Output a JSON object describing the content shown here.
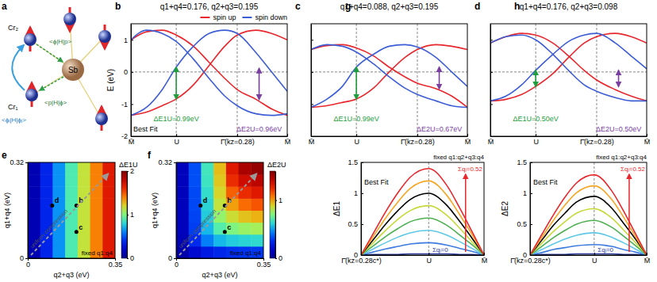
{
  "diagram": {
    "panel": "a",
    "labels": {
      "cr2": "Cr₂",
      "cr1": "Cr₁",
      "sb": "Sb",
      "phi_h_p": "<ϕ|H|p>",
      "p_h_phi": "<p|H|ϕ>",
      "phii_h_phij": "<ϕᵢ|H|ϕⱼ>"
    }
  },
  "chart_data": [
    {
      "panel": "b",
      "type": "line",
      "title": "q1+q4=0.176, q2+q3=0.195",
      "y_label": "E (eV)",
      "x": [
        0,
        0.1,
        0.2,
        0.29,
        0.4,
        0.5,
        0.6,
        0.68,
        0.8,
        0.9,
        1
      ],
      "series": [
        {
          "name": "spin up",
          "color": "#e8262b",
          "values": [
            -1.35,
            -1.25,
            -1.05,
            -0.84,
            -0.4,
            0.2,
            0.8,
            1.15,
            1.3,
            1.2,
            1.0
          ]
        },
        {
          "name": "spin up",
          "color": "#e8262b",
          "values": [
            1.0,
            1.25,
            1.3,
            1.15,
            0.8,
            0.3,
            -0.2,
            -0.55,
            -0.85,
            -1.15,
            -1.35
          ]
        },
        {
          "name": "spin down",
          "color": "#3c5dd6",
          "values": [
            1.0,
            1.3,
            1.2,
            0.95,
            0.4,
            -0.2,
            -0.75,
            -1.05,
            -1.3,
            -1.35,
            -1.3
          ]
        },
        {
          "name": "spin down",
          "color": "#3c5dd6",
          "values": [
            -1.35,
            -1.1,
            -0.55,
            0.15,
            0.8,
            1.2,
            1.3,
            1.2,
            0.6,
            0.0,
            -0.6
          ]
        }
      ],
      "xlim": [
        0,
        1
      ],
      "xticks": [
        {
          "value": 0,
          "label": "M̄"
        },
        {
          "value": 0.29,
          "label": "U"
        },
        {
          "value": 0.68,
          "label": "Γ̄(kz=0.28)"
        },
        {
          "value": 1,
          "label": "M̄"
        }
      ],
      "ylim": [
        -2,
        1.5
      ],
      "yticks": [
        -2,
        -1,
        0,
        1
      ],
      "legend": "top right",
      "hlines": [
        0
      ],
      "vlines": [
        0.29,
        0.68
      ],
      "annotations": [
        "Best Fit"
      ],
      "arrows": [
        {
          "x": 0.29,
          "y": [
            0.15,
            -0.84
          ],
          "label": "ΔE1U=0.99eV",
          "color": "#1e9e3c"
        },
        {
          "x": 0.82,
          "y": [
            0.11,
            -0.85
          ],
          "label": "ΔE2U=0.96eV",
          "color": "#7a3fa0"
        }
      ]
    },
    {
      "panel": "c",
      "type": "line",
      "title": "q1+q4=0.088, q2+q3=0.195",
      "x": [
        0,
        0.1,
        0.2,
        0.29,
        0.4,
        0.5,
        0.6,
        0.68,
        0.8,
        0.9,
        1
      ],
      "series": [
        {
          "color": "#e8262b",
          "values": [
            -1.1,
            -1.05,
            -0.95,
            -0.84,
            -0.5,
            0.0,
            0.45,
            0.7,
            0.85,
            0.8,
            0.7
          ]
        },
        {
          "color": "#e8262b",
          "values": [
            0.7,
            0.82,
            0.85,
            0.75,
            0.5,
            0.15,
            -0.15,
            -0.35,
            -0.52,
            -0.75,
            -1.1
          ]
        },
        {
          "color": "#3c5dd6",
          "values": [
            0.7,
            0.85,
            0.8,
            0.62,
            0.25,
            -0.15,
            -0.5,
            -0.7,
            -0.9,
            -1.05,
            -1.1
          ]
        },
        {
          "color": "#3c5dd6",
          "values": [
            -1.1,
            -0.85,
            -0.45,
            0.15,
            0.55,
            0.8,
            0.85,
            0.78,
            0.45,
            0.0,
            -0.45
          ]
        }
      ],
      "xlim": [
        0,
        1
      ],
      "xticks": [
        {
          "value": 0,
          "label": "M̄"
        },
        {
          "value": 0.29,
          "label": "U"
        },
        {
          "value": 0.68,
          "label": "Γ̄(kz=0.28)"
        },
        {
          "value": 1,
          "label": "M̄"
        }
      ],
      "ylim": [
        -2,
        1.5
      ],
      "yticks": [
        -2,
        -1,
        0,
        1
      ],
      "tick_labels": "x",
      "hlines": [
        0
      ],
      "vlines": [
        0.29,
        0.68
      ],
      "arrows": [
        {
          "x": 0.29,
          "y": [
            0.15,
            -0.84
          ],
          "label": "ΔE1U=0.99eV",
          "color": "#1e9e3c"
        },
        {
          "x": 0.82,
          "y": [
            0.15,
            -0.52
          ],
          "label": "ΔE2U=0.67eV",
          "color": "#7a3fa0"
        }
      ]
    },
    {
      "panel": "d",
      "type": "line",
      "title": "q1+q4=0.176, q2+q3=0.098",
      "x": [
        0,
        0.1,
        0.2,
        0.29,
        0.4,
        0.5,
        0.6,
        0.68,
        0.8,
        0.9,
        1
      ],
      "series": [
        {
          "color": "#e8262b",
          "values": [
            -0.9,
            -0.85,
            -0.7,
            -0.45,
            -0.05,
            0.45,
            0.9,
            1.1,
            1.2,
            1.1,
            0.9
          ]
        },
        {
          "color": "#e8262b",
          "values": [
            0.9,
            1.1,
            1.2,
            1.15,
            0.9,
            0.5,
            0.05,
            -0.25,
            -0.55,
            -0.75,
            -0.9
          ]
        },
        {
          "color": "#3c5dd6",
          "values": [
            0.9,
            1.1,
            1.15,
            1.0,
            0.55,
            0.05,
            -0.4,
            -0.6,
            -0.8,
            -0.9,
            -0.9
          ]
        },
        {
          "color": "#3c5dd6",
          "values": [
            -0.9,
            -0.75,
            -0.4,
            0.05,
            0.55,
            0.95,
            1.15,
            1.2,
            0.9,
            0.5,
            0.1
          ]
        }
      ],
      "xlim": [
        0,
        1
      ],
      "xticks": [
        {
          "value": 0,
          "label": "M̄"
        },
        {
          "value": 0.29,
          "label": "U"
        },
        {
          "value": 0.68,
          "label": "Γ̄(kz=0.28)"
        },
        {
          "value": 1,
          "label": "M̄"
        }
      ],
      "ylim": [
        -2,
        1.5
      ],
      "yticks": [
        -2,
        -1,
        0,
        1
      ],
      "tick_labels": "x",
      "hlines": [
        0
      ],
      "vlines": [
        0.29,
        0.68
      ],
      "arrows": [
        {
          "x": 0.29,
          "y": [
            0.05,
            -0.45
          ],
          "label": "ΔE1U=0.50eV",
          "color": "#1e9e3c"
        },
        {
          "x": 0.82,
          "y": [
            0.05,
            -0.45
          ],
          "label": "ΔE2U=0.50eV",
          "color": "#7a3fa0"
        }
      ]
    },
    {
      "panel": "e",
      "type": "heatmap",
      "x_label": "q2+q3 (eV)",
      "y_label": "q1+q4 (eV)",
      "x_edges": [
        0,
        0.05,
        0.1,
        0.15,
        0.2,
        0.25,
        0.3,
        0.35
      ],
      "y_edges": [
        0,
        0.04,
        0.08,
        0.12,
        0.16,
        0.2,
        0.24,
        0.28,
        0.32
      ],
      "cells": [
        [
          0.13,
          0.38,
          0.64,
          0.89,
          1.15,
          1.4,
          1.66
        ],
        [
          0.13,
          0.38,
          0.64,
          0.89,
          1.15,
          1.4,
          1.66
        ],
        [
          0.13,
          0.38,
          0.64,
          0.89,
          1.15,
          1.4,
          1.66
        ],
        [
          0.13,
          0.38,
          0.64,
          0.89,
          1.15,
          1.4,
          1.66
        ],
        [
          0.13,
          0.38,
          0.64,
          0.89,
          1.15,
          1.4,
          1.66
        ],
        [
          0.13,
          0.38,
          0.64,
          0.89,
          1.15,
          1.4,
          1.66
        ],
        [
          0.13,
          0.38,
          0.64,
          0.89,
          1.15,
          1.4,
          1.66
        ],
        [
          0.13,
          0.38,
          0.64,
          0.89,
          1.15,
          1.4,
          1.66
        ]
      ],
      "xlim": [
        0,
        0.35
      ],
      "xticks": [
        0,
        0.35
      ],
      "ylim": [
        0,
        0.32
      ],
      "yticks": [
        0,
        0.32
      ],
      "colorbar": {
        "label": "ΔE1U",
        "range": [
          0,
          2
        ],
        "ticks": [
          0,
          1,
          2
        ]
      },
      "points": [
        {
          "label": "b",
          "x": 0.195,
          "y": 0.176
        },
        {
          "label": "c",
          "x": 0.195,
          "y": 0.088
        },
        {
          "label": "d",
          "x": 0.098,
          "y": 0.176
        }
      ],
      "annotations": [
        "fixed q1:q4",
        "uniform compression"
      ]
    },
    {
      "panel": "f",
      "type": "heatmap",
      "x_label": "q2+q3 (eV)",
      "y_label": "q1+q4 (eV)",
      "x_edges": [
        0,
        0.05,
        0.1,
        0.15,
        0.2,
        0.25,
        0.3,
        0.35
      ],
      "y_edges": [
        0,
        0.04,
        0.08,
        0.12,
        0.16,
        0.2,
        0.24,
        0.28,
        0.32
      ],
      "cells": [
        [
          0.08,
          0.18,
          0.25,
          0.29,
          0.31,
          0.32,
          0.33
        ],
        [
          0.11,
          0.3,
          0.45,
          0.54,
          0.58,
          0.6,
          0.61
        ],
        [
          0.12,
          0.34,
          0.54,
          0.68,
          0.75,
          0.79,
          0.81
        ],
        [
          0.12,
          0.35,
          0.58,
          0.78,
          0.88,
          0.94,
          0.97
        ],
        [
          0.12,
          0.36,
          0.6,
          0.86,
          1.0,
          1.08,
          1.12
        ],
        [
          0.12,
          0.36,
          0.62,
          0.9,
          1.1,
          1.2,
          1.25
        ],
        [
          0.12,
          0.37,
          0.64,
          0.93,
          1.2,
          1.3,
          1.35
        ],
        [
          0.12,
          0.37,
          0.65,
          0.95,
          1.25,
          1.4,
          1.45
        ]
      ],
      "xlim": [
        0,
        0.35
      ],
      "xticks": [
        0,
        0.35
      ],
      "ylim": [
        0,
        0.32
      ],
      "yticks": [
        0,
        0.32
      ],
      "colorbar": {
        "label": "ΔE2U",
        "range": [
          0,
          1.5
        ],
        "ticks": [
          0,
          1
        ]
      },
      "points": [
        {
          "label": "b",
          "x": 0.195,
          "y": 0.176
        },
        {
          "label": "c",
          "x": 0.195,
          "y": 0.088
        },
        {
          "label": "d",
          "x": 0.098,
          "y": 0.176
        }
      ],
      "annotations": [
        "fixed q1:q4",
        "uniform compression"
      ]
    },
    {
      "panel": "g",
      "type": "line",
      "y_label": "ΔE1",
      "x": [
        0,
        0.1,
        0.2,
        0.3,
        0.4,
        0.55,
        0.7,
        0.8,
        0.9,
        1
      ],
      "series": [
        {
          "color": "#2b3a9e",
          "values": [
            0,
            0.01,
            0.01,
            0.01,
            0.02,
            0.02,
            0.02,
            0.01,
            0.01,
            0
          ]
        },
        {
          "color": "#3d7be0",
          "values": [
            0,
            0.05,
            0.1,
            0.14,
            0.18,
            0.2,
            0.16,
            0.11,
            0.06,
            0
          ]
        },
        {
          "color": "#5ec8e6",
          "values": [
            0,
            0.1,
            0.2,
            0.29,
            0.36,
            0.4,
            0.32,
            0.22,
            0.11,
            0
          ]
        },
        {
          "color": "#4cb050",
          "values": [
            0,
            0.15,
            0.3,
            0.43,
            0.54,
            0.6,
            0.48,
            0.33,
            0.17,
            0
          ]
        },
        {
          "color": "#c7d93a",
          "values": [
            0,
            0.2,
            0.4,
            0.58,
            0.72,
            0.8,
            0.64,
            0.44,
            0.22,
            0
          ]
        },
        {
          "name": "Best Fit",
          "color": "#000000",
          "values": [
            0,
            0.25,
            0.5,
            0.72,
            0.9,
            1.0,
            0.8,
            0.55,
            0.28,
            0
          ]
        },
        {
          "color": "#f5a623",
          "values": [
            0,
            0.3,
            0.6,
            0.86,
            1.08,
            1.2,
            0.96,
            0.66,
            0.34,
            0
          ]
        },
        {
          "color": "#e8262b",
          "values": [
            0,
            0.35,
            0.7,
            1.01,
            1.26,
            1.4,
            1.12,
            0.77,
            0.39,
            0
          ]
        }
      ],
      "xlim": [
        0,
        1
      ],
      "xticks": [
        {
          "value": 0,
          "label": "Γ̄(kz=0.28c*)"
        },
        {
          "value": 0.55,
          "label": "U"
        },
        {
          "value": 1,
          "label": "M̄"
        }
      ],
      "ylim": [
        0,
        1.5
      ],
      "yticks": [
        0,
        0.5,
        1,
        1.5
      ],
      "vlines": [
        0.55
      ],
      "annotations": [
        "fixed q1:q2+q3:q4",
        "Σqᵢ=0",
        "Σqᵢ=0.52"
      ]
    },
    {
      "panel": "h",
      "type": "line",
      "y_label": "ΔE2",
      "x": [
        0,
        0.1,
        0.2,
        0.3,
        0.4,
        0.55,
        0.7,
        0.8,
        0.9,
        1
      ],
      "series": [
        {
          "color": "#2b3a9e",
          "values": [
            0,
            0.01,
            0.01,
            0.01,
            0.02,
            0.02,
            0.02,
            0.01,
            0.01,
            0
          ]
        },
        {
          "color": "#3d7be0",
          "values": [
            0,
            0.04,
            0.09,
            0.12,
            0.15,
            0.17,
            0.14,
            0.09,
            0.05,
            0
          ]
        },
        {
          "color": "#5ec8e6",
          "values": [
            0,
            0.09,
            0.18,
            0.26,
            0.32,
            0.36,
            0.29,
            0.2,
            0.1,
            0
          ]
        },
        {
          "color": "#4cb050",
          "values": [
            0,
            0.14,
            0.28,
            0.4,
            0.5,
            0.56,
            0.45,
            0.31,
            0.16,
            0
          ]
        },
        {
          "color": "#c7d93a",
          "values": [
            0,
            0.19,
            0.38,
            0.54,
            0.68,
            0.75,
            0.6,
            0.41,
            0.21,
            0
          ]
        },
        {
          "name": "Best Fit",
          "color": "#000000",
          "values": [
            0,
            0.24,
            0.48,
            0.68,
            0.86,
            0.95,
            0.76,
            0.52,
            0.27,
            0
          ]
        },
        {
          "color": "#f5a623",
          "values": [
            0,
            0.28,
            0.56,
            0.81,
            1.01,
            1.12,
            0.9,
            0.62,
            0.31,
            0
          ]
        },
        {
          "color": "#e8262b",
          "values": [
            0,
            0.33,
            0.65,
            0.94,
            1.17,
            1.3,
            1.04,
            0.72,
            0.36,
            0
          ]
        }
      ],
      "xlim": [
        0,
        1
      ],
      "xticks": [
        {
          "value": 0,
          "label": "Γ̄(kz=0.28c*)"
        },
        {
          "value": 0.55,
          "label": "U"
        },
        {
          "value": 1,
          "label": "M̄"
        }
      ],
      "ylim": [
        0,
        1.5
      ],
      "yticks": [
        0,
        0.5,
        1,
        1.5
      ],
      "vlines": [
        0.55
      ],
      "annotations": [
        "fixed q1:q2+q3:q4",
        "Σqᵢ=0",
        "Σqᵢ=0.52"
      ]
    }
  ]
}
